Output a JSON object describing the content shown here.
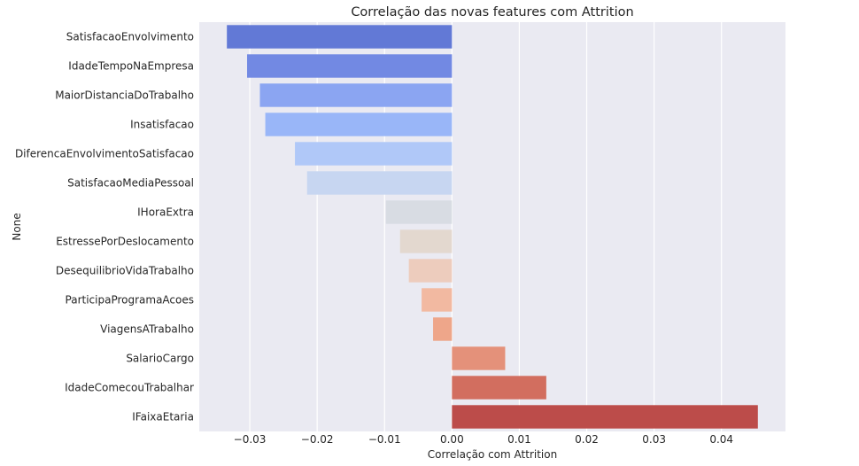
{
  "chart_data": {
    "type": "bar",
    "orientation": "horizontal",
    "title": "Correlação das novas features com Attrition",
    "xlabel": "Correlação com Attrition",
    "ylabel": "None",
    "xlim": [
      -0.0375,
      0.0495
    ],
    "xticks": [
      -0.03,
      -0.02,
      -0.01,
      0.0,
      0.01,
      0.02,
      0.03,
      0.04
    ],
    "xtick_labels": [
      "−0.03",
      "−0.02",
      "−0.01",
      "0.00",
      "0.01",
      "0.02",
      "0.03",
      "0.04"
    ],
    "grid": true,
    "categories": [
      "SatisfacaoEnvolvimento",
      "IdadeTempoNaEmpresa",
      "MaiorDistanciaDoTrabalho",
      "Insatisfacao",
      "DiferencaEnvolvimentoSatisfacao",
      "SatisfacaoMediaPessoal",
      "IHoraExtra",
      "EstressePorDeslocamento",
      "DesequilibrioVidaTrabalho",
      "ParticipaProgramaAcoes",
      "ViagensATrabalho",
      "SalarioCargo",
      "IdadeComecouTrabalhar",
      "IFaixaEtaria"
    ],
    "values": [
      -0.0334,
      -0.0304,
      -0.0285,
      -0.0277,
      -0.0233,
      -0.0215,
      -0.0098,
      -0.0077,
      -0.0064,
      -0.0045,
      -0.0028,
      0.0079,
      0.014,
      0.0454
    ],
    "colors": [
      "#6279d6",
      "#7289e3",
      "#8ba5f2",
      "#99b6f8",
      "#b0c8f8",
      "#c7d6f1",
      "#d8dce3",
      "#e3d8cf",
      "#edccbd",
      "#f2b9a1",
      "#eea68a",
      "#e4917a",
      "#d26e5f",
      "#bc4c4a"
    ],
    "plot_background": "#eaeaf2",
    "grid_color": "#ffffff"
  }
}
